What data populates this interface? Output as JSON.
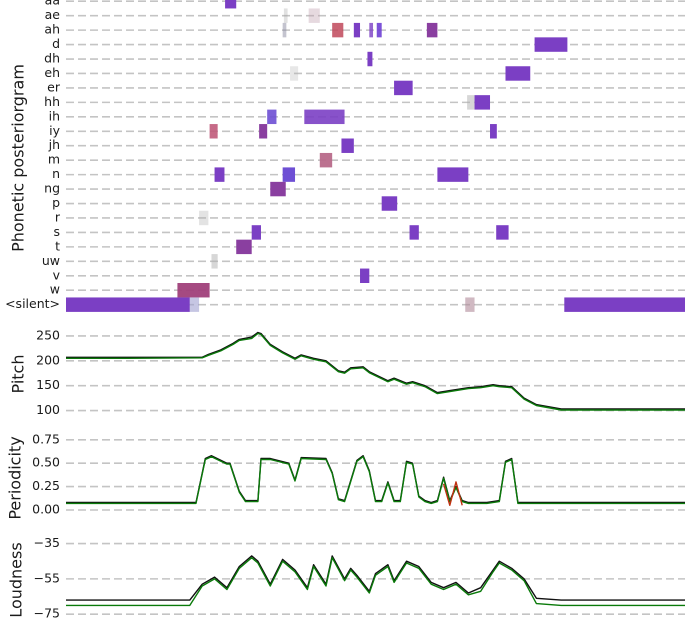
{
  "chart_data": [
    {
      "panel": "phonetic",
      "type": "heatmap",
      "ylabel": "Phonetic posteriorgram",
      "phonemes": [
        "aa",
        "ae",
        "ah",
        "d",
        "dh",
        "eh",
        "er",
        "hh",
        "ih",
        "iy",
        "jh",
        "m",
        "n",
        "ng",
        "p",
        "r",
        "s",
        "t",
        "uw",
        "v",
        "w",
        "<silent>"
      ],
      "x_range": [
        0,
        1
      ],
      "segments": [
        {
          "phoneme": "aa",
          "start": 0.257,
          "end": 0.275,
          "color": "#7b3fc4",
          "alpha": 1.0
        },
        {
          "phoneme": "ae",
          "start": 0.352,
          "end": 0.358,
          "color": "#9a9a9a",
          "alpha": 0.3
        },
        {
          "phoneme": "ae",
          "start": 0.392,
          "end": 0.41,
          "color": "#c0a0b0",
          "alpha": 0.4
        },
        {
          "phoneme": "ah",
          "start": 0.35,
          "end": 0.356,
          "color": "#8a8aa0",
          "alpha": 0.5
        },
        {
          "phoneme": "ah",
          "start": 0.43,
          "end": 0.448,
          "color": "#c0485a",
          "alpha": 0.85
        },
        {
          "phoneme": "ah",
          "start": 0.465,
          "end": 0.475,
          "color": "#7b3fc4",
          "alpha": 1.0
        },
        {
          "phoneme": "ah",
          "start": 0.49,
          "end": 0.496,
          "color": "#7b3fc4",
          "alpha": 0.8
        },
        {
          "phoneme": "ah",
          "start": 0.502,
          "end": 0.51,
          "color": "#6e3fd4",
          "alpha": 0.9
        },
        {
          "phoneme": "ah",
          "start": 0.583,
          "end": 0.6,
          "color": "#8a3fa0",
          "alpha": 1.0
        },
        {
          "phoneme": "d",
          "start": 0.757,
          "end": 0.81,
          "color": "#7b3fc4",
          "alpha": 1.0
        },
        {
          "phoneme": "dh",
          "start": 0.487,
          "end": 0.495,
          "color": "#7b3fc4",
          "alpha": 1.0
        },
        {
          "phoneme": "eh",
          "start": 0.362,
          "end": 0.375,
          "color": "#b0b0b0",
          "alpha": 0.3
        },
        {
          "phoneme": "eh",
          "start": 0.71,
          "end": 0.75,
          "color": "#7b3fc4",
          "alpha": 1.0
        },
        {
          "phoneme": "er",
          "start": 0.53,
          "end": 0.56,
          "color": "#7b3fc4",
          "alpha": 1.0
        },
        {
          "phoneme": "hh",
          "start": 0.648,
          "end": 0.66,
          "color": "#b0b0b0",
          "alpha": 0.5
        },
        {
          "phoneme": "hh",
          "start": 0.66,
          "end": 0.685,
          "color": "#7b3fc4",
          "alpha": 1.0
        },
        {
          "phoneme": "ih",
          "start": 0.325,
          "end": 0.34,
          "color": "#6e4fd4",
          "alpha": 0.9
        },
        {
          "phoneme": "ih",
          "start": 0.385,
          "end": 0.45,
          "color": "#7b3fc4",
          "alpha": 0.9
        },
        {
          "phoneme": "iy",
          "start": 0.232,
          "end": 0.245,
          "color": "#c05a7a",
          "alpha": 0.9
        },
        {
          "phoneme": "iy",
          "start": 0.312,
          "end": 0.325,
          "color": "#8a3fa0",
          "alpha": 1.0
        },
        {
          "phoneme": "iy",
          "start": 0.685,
          "end": 0.696,
          "color": "#7b3fc4",
          "alpha": 1.0
        },
        {
          "phoneme": "jh",
          "start": 0.445,
          "end": 0.465,
          "color": "#7b3fc4",
          "alpha": 1.0
        },
        {
          "phoneme": "m",
          "start": 0.41,
          "end": 0.43,
          "color": "#b86a8a",
          "alpha": 0.95
        },
        {
          "phoneme": "n",
          "start": 0.24,
          "end": 0.256,
          "color": "#7b3fc4",
          "alpha": 1.0
        },
        {
          "phoneme": "n",
          "start": 0.35,
          "end": 0.37,
          "color": "#6e4fd4",
          "alpha": 1.0
        },
        {
          "phoneme": "n",
          "start": 0.6,
          "end": 0.65,
          "color": "#7b3fc4",
          "alpha": 1.0
        },
        {
          "phoneme": "ng",
          "start": 0.33,
          "end": 0.355,
          "color": "#8a3fa0",
          "alpha": 1.0
        },
        {
          "phoneme": "p",
          "start": 0.51,
          "end": 0.535,
          "color": "#7b3fc4",
          "alpha": 1.0
        },
        {
          "phoneme": "r",
          "start": 0.215,
          "end": 0.23,
          "color": "#b0b0b0",
          "alpha": 0.35
        },
        {
          "phoneme": "s",
          "start": 0.3,
          "end": 0.315,
          "color": "#7b3fc4",
          "alpha": 1.0
        },
        {
          "phoneme": "s",
          "start": 0.555,
          "end": 0.57,
          "color": "#7b3fc4",
          "alpha": 1.0
        },
        {
          "phoneme": "s",
          "start": 0.695,
          "end": 0.715,
          "color": "#7b3fc4",
          "alpha": 1.0
        },
        {
          "phoneme": "t",
          "start": 0.275,
          "end": 0.3,
          "color": "#8a3fa0",
          "alpha": 1.0
        },
        {
          "phoneme": "uw",
          "start": 0.235,
          "end": 0.245,
          "color": "#b0b0b0",
          "alpha": 0.5
        },
        {
          "phoneme": "v",
          "start": 0.475,
          "end": 0.49,
          "color": "#7b3fc4",
          "alpha": 1.0
        },
        {
          "phoneme": "w",
          "start": 0.18,
          "end": 0.232,
          "color": "#a0407a",
          "alpha": 0.95
        },
        {
          "phoneme": "<silent>",
          "start": 0.0,
          "end": 0.2,
          "color": "#7b3fc4",
          "alpha": 1.0
        },
        {
          "phoneme": "<silent>",
          "start": 0.2,
          "end": 0.215,
          "color": "#a0a0d0",
          "alpha": 0.6
        },
        {
          "phoneme": "<silent>",
          "start": 0.645,
          "end": 0.66,
          "color": "#b08a9a",
          "alpha": 0.6
        },
        {
          "phoneme": "<silent>",
          "start": 0.805,
          "end": 1.0,
          "color": "#7b3fc4",
          "alpha": 1.0
        }
      ]
    },
    {
      "panel": "pitch",
      "type": "line",
      "ylabel": "Pitch",
      "yticks": [
        100,
        150,
        200,
        250
      ],
      "ylim": [
        95,
        262
      ],
      "x": [
        0,
        0.1,
        0.22,
        0.23,
        0.25,
        0.27,
        0.28,
        0.3,
        0.31,
        0.315,
        0.33,
        0.35,
        0.37,
        0.38,
        0.4,
        0.42,
        0.44,
        0.45,
        0.46,
        0.48,
        0.49,
        0.5,
        0.52,
        0.53,
        0.55,
        0.56,
        0.58,
        0.6,
        0.62,
        0.65,
        0.67,
        0.69,
        0.7,
        0.72,
        0.74,
        0.76,
        0.8,
        1.0
      ],
      "series": [
        {
          "color": "#111111",
          "values": [
            207,
            207,
            207,
            213,
            222,
            235,
            243,
            248,
            257,
            255,
            233,
            218,
            205,
            212,
            205,
            200,
            180,
            177,
            186,
            188,
            178,
            172,
            160,
            165,
            155,
            158,
            150,
            136,
            140,
            146,
            148,
            152,
            150,
            148,
            125,
            112,
            103,
            103
          ]
        },
        {
          "color": "#0a7a0a",
          "values": [
            205,
            205,
            206,
            211,
            220,
            233,
            241,
            245,
            255,
            253,
            231,
            216,
            203,
            210,
            203,
            198,
            178,
            175,
            184,
            186,
            176,
            170,
            158,
            163,
            153,
            156,
            148,
            134,
            138,
            144,
            146,
            150,
            148,
            146,
            123,
            110,
            101,
            101
          ]
        }
      ]
    },
    {
      "panel": "periodicity",
      "type": "line",
      "ylabel": "Periodicity",
      "yticks": [
        0.0,
        0.25,
        0.5,
        0.75
      ],
      "ylim": [
        0,
        0.78
      ],
      "x": [
        0,
        0.21,
        0.225,
        0.235,
        0.26,
        0.265,
        0.27,
        0.28,
        0.29,
        0.3,
        0.31,
        0.315,
        0.33,
        0.36,
        0.37,
        0.38,
        0.42,
        0.43,
        0.44,
        0.45,
        0.47,
        0.48,
        0.49,
        0.5,
        0.51,
        0.52,
        0.53,
        0.54,
        0.55,
        0.56,
        0.57,
        0.58,
        0.59,
        0.6,
        0.61,
        0.62,
        0.63,
        0.64,
        0.65,
        0.67,
        0.68,
        0.7,
        0.71,
        0.72,
        0.73,
        0.74,
        1.0
      ],
      "series": [
        {
          "color": "#111111",
          "values": [
            0.08,
            0.08,
            0.55,
            0.58,
            0.5,
            0.5,
            0.4,
            0.2,
            0.1,
            0.1,
            0.1,
            0.55,
            0.55,
            0.5,
            0.32,
            0.56,
            0.55,
            0.4,
            0.12,
            0.1,
            0.53,
            0.58,
            0.42,
            0.1,
            0.1,
            0.3,
            0.1,
            0.1,
            0.52,
            0.5,
            0.15,
            0.1,
            0.08,
            0.1,
            0.35,
            0.1,
            0.25,
            0.1,
            0.08,
            0.08,
            0.08,
            0.1,
            0.52,
            0.55,
            0.08,
            0.08,
            0.08
          ]
        },
        {
          "color": "#0a7a0a",
          "values": [
            0.07,
            0.07,
            0.54,
            0.57,
            0.49,
            0.49,
            0.39,
            0.19,
            0.09,
            0.09,
            0.09,
            0.54,
            0.54,
            0.49,
            0.31,
            0.55,
            0.54,
            0.39,
            0.11,
            0.09,
            0.52,
            0.57,
            0.41,
            0.09,
            0.09,
            0.29,
            0.09,
            0.09,
            0.51,
            0.49,
            0.14,
            0.09,
            0.07,
            0.09,
            0.34,
            0.09,
            0.24,
            0.09,
            0.07,
            0.07,
            0.07,
            0.09,
            0.51,
            0.54,
            0.07,
            0.07,
            0.07
          ]
        },
        {
          "color": "#c03010",
          "values": [
            null,
            null,
            null,
            null,
            null,
            null,
            null,
            null,
            null,
            null,
            null,
            null,
            null,
            null,
            null,
            null,
            null,
            null,
            null,
            null,
            null,
            null,
            null,
            null,
            null,
            0.2,
            null,
            null,
            null,
            null,
            null,
            null,
            null,
            null,
            0.28,
            0.05,
            0.3,
            0.05,
            null,
            null,
            null,
            null,
            null,
            null,
            null,
            null,
            null
          ]
        }
      ]
    },
    {
      "panel": "loudness",
      "type": "line",
      "ylabel": "Loudness",
      "yticks": [
        -75,
        -55,
        -35
      ],
      "ylim": [
        -76,
        -33
      ],
      "x": [
        0,
        0.2,
        0.22,
        0.24,
        0.26,
        0.28,
        0.3,
        0.31,
        0.33,
        0.35,
        0.37,
        0.39,
        0.4,
        0.42,
        0.43,
        0.45,
        0.46,
        0.47,
        0.49,
        0.5,
        0.52,
        0.53,
        0.55,
        0.57,
        0.59,
        0.61,
        0.63,
        0.65,
        0.67,
        0.69,
        0.7,
        0.72,
        0.74,
        0.76,
        0.8,
        1.0
      ],
      "series": [
        {
          "color": "#111111",
          "values": [
            -67,
            -67,
            -58,
            -54,
            -60,
            -48,
            -42,
            -45,
            -58,
            -44,
            -50,
            -60,
            -47,
            -58,
            -42,
            -55,
            -49,
            -53,
            -62,
            -52,
            -47,
            -56,
            -45,
            -48,
            -57,
            -60,
            -57,
            -63,
            -60,
            -50,
            -45,
            -49,
            -55,
            -66,
            -67,
            -67
          ]
        },
        {
          "color": "#0a7a0a",
          "values": [
            -70,
            -70,
            -59,
            -55,
            -61,
            -49,
            -43,
            -46,
            -59,
            -45,
            -51,
            -61,
            -48,
            -59,
            -43,
            -56,
            -50,
            -54,
            -63,
            -53,
            -48,
            -57,
            -46,
            -49,
            -58,
            -61,
            -58,
            -64,
            -62,
            -51,
            -46,
            -50,
            -56,
            -69,
            -70,
            -70
          ]
        }
      ]
    }
  ]
}
